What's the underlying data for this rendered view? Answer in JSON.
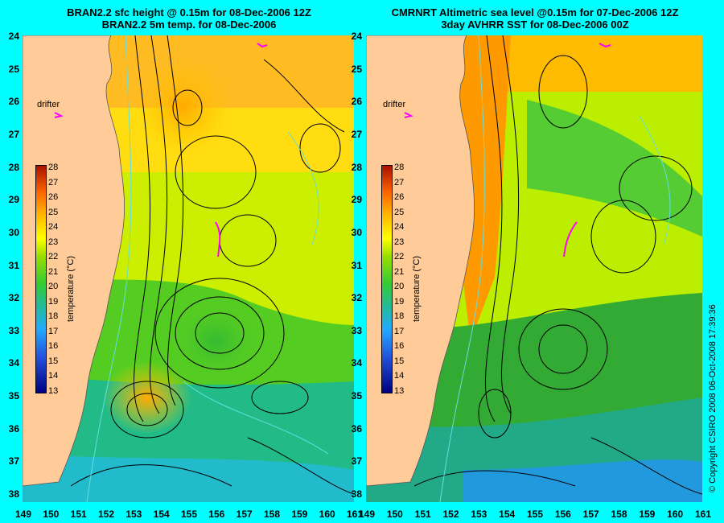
{
  "left_panel": {
    "title_line1": "BRAN2.2 sfc height @ 0.15m for 08-Dec-2006 12Z",
    "title_line2": "BRAN2.2 5m temp. for 08-Dec-2006",
    "drifter_label": "drifter",
    "colorbar_title": "temperature (°C)"
  },
  "right_panel": {
    "title_line1": "CMRNRT Altimetric sea level  @0.15m  for 07-Dec-2006 12Z",
    "title_line2": "3day AVHRR SST for 08-Dec-2006 00Z",
    "drifter_label": "drifter",
    "colorbar_title": "temperature (°C)"
  },
  "x_ticks": [
    "149",
    "150",
    "151",
    "152",
    "153",
    "154",
    "155",
    "156",
    "157",
    "158",
    "159",
    "160",
    "161"
  ],
  "y_ticks": [
    "24",
    "25",
    "26",
    "27",
    "28",
    "29",
    "30",
    "31",
    "32",
    "33",
    "34",
    "35",
    "36",
    "37",
    "38"
  ],
  "colorbar_ticks": [
    "28",
    "27",
    "26",
    "25",
    "24",
    "23",
    "22",
    "21",
    "20",
    "19",
    "18",
    "17",
    "16",
    "15",
    "14",
    "13"
  ],
  "copyright": "© Copyright CSIRO 2008   06-Oct-2008 17:39:36",
  "colors": {
    "land": "#ffcc99",
    "background": "#00ffff",
    "drifter_track": "#ff00ff",
    "contour": "#000000",
    "isobath": "#66dddd"
  }
}
